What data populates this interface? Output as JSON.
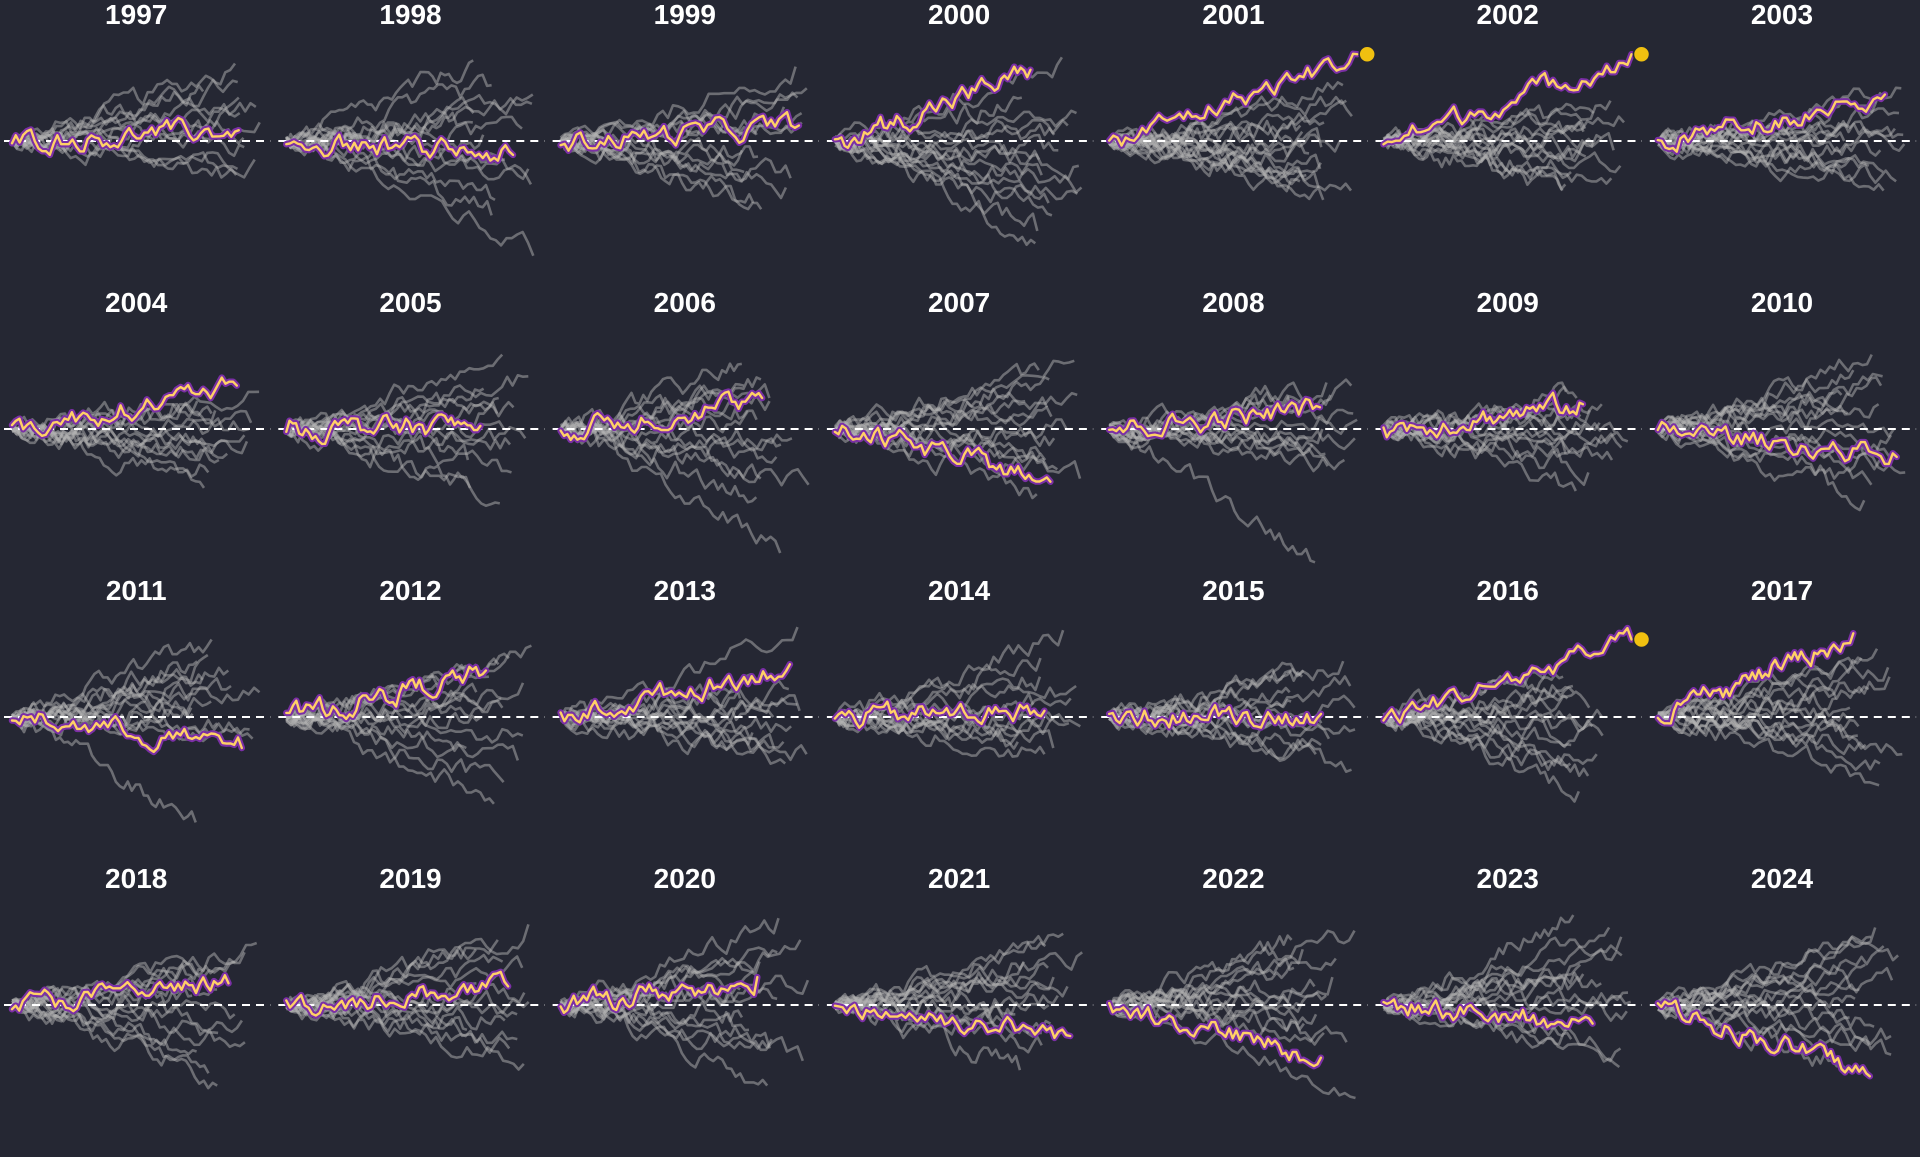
{
  "chart_data": {
    "type": "line",
    "title": "",
    "xlabel": "",
    "ylabel": "",
    "grid": false,
    "legend": "none",
    "reference_line": {
      "y": 0,
      "style": "dashed",
      "color": "#ffffff"
    },
    "colors": {
      "background": "#252733",
      "panel_title": "#ffffff",
      "other_series": "#b4b4b4",
      "highlight_series": "#ffd166",
      "highlight_outline": "#7b2fa6",
      "end_marker": "#f0c010"
    },
    "ylim": [
      -4.6,
      3.0
    ],
    "panels": [
      {
        "title": "1997",
        "highlight_end": 0.35,
        "end_marker": false,
        "others": [
          -1.1,
          0.6,
          1.4,
          2.5,
          1.9,
          0.1,
          0.9,
          -0.6,
          0.3,
          -0.2,
          1.1,
          1.6,
          -0.9
        ]
      },
      {
        "title": "1998",
        "highlight_end": -0.45,
        "end_marker": false,
        "others": [
          2.6,
          -3.7,
          -1.9,
          1.2,
          0.6,
          -0.9,
          1.5,
          0.2,
          -0.6,
          -1.4,
          0.9,
          1.8,
          -2.4,
          0.4
        ]
      },
      {
        "title": "1999",
        "highlight_end": 0.5,
        "end_marker": false,
        "others": [
          2.4,
          1.7,
          1.1,
          0.6,
          -0.5,
          -1.0,
          -1.5,
          -2.0,
          0.2,
          0.9,
          -0.3,
          -1.2,
          -2.2,
          1.4
        ]
      },
      {
        "title": "2000",
        "highlight_end": 2.3,
        "end_marker": false,
        "others": [
          2.7,
          -3.3,
          -2.4,
          -1.5,
          -0.8,
          -0.3,
          0.2,
          0.9,
          1.4,
          -1.1,
          -2.0,
          0.5,
          -2.9,
          -1.7,
          -0.6
        ]
      },
      {
        "title": "2001",
        "highlight_end": 2.8,
        "end_marker": true,
        "others": [
          0.8,
          0.3,
          -0.2,
          -0.7,
          -1.1,
          -1.6,
          -1.9,
          0.5,
          0.0,
          -0.4,
          -0.9,
          -1.3,
          1.3,
          1.8,
          -1.5,
          0.6
        ]
      },
      {
        "title": "2002",
        "highlight_end": 2.8,
        "end_marker": true,
        "others": [
          0.9,
          0.3,
          -0.3,
          -0.8,
          -1.2,
          -1.6,
          0.6,
          0.1,
          -0.5,
          -1.0,
          1.3,
          -1.4,
          -0.2,
          0.4
        ]
      },
      {
        "title": "2003",
        "highlight_end": 1.5,
        "end_marker": false,
        "others": [
          0.9,
          0.4,
          -0.1,
          -0.6,
          -1.0,
          -1.6,
          1.3,
          0.2,
          -0.3,
          -0.8,
          1.7,
          -1.3,
          0.6,
          0.0
        ]
      },
      {
        "title": "2004",
        "highlight_end": 1.4,
        "end_marker": false,
        "others": [
          0.9,
          0.5,
          0.2,
          -0.2,
          -0.5,
          -1.0,
          -1.9,
          1.2,
          0.0,
          -0.4,
          0.6,
          -0.8,
          -1.4
        ]
      },
      {
        "title": "2005",
        "highlight_end": 0.1,
        "end_marker": false,
        "others": [
          2.4,
          1.7,
          1.0,
          0.5,
          0.0,
          -0.5,
          -1.0,
          -1.9,
          -2.4,
          1.3,
          0.7,
          -0.3,
          -1.4
        ]
      },
      {
        "title": "2006",
        "highlight_end": 1.0,
        "end_marker": false,
        "others": [
          2.1,
          1.6,
          1.0,
          0.3,
          -0.3,
          -0.9,
          -1.6,
          -2.2,
          -4.0,
          1.4,
          0.6,
          -0.5,
          -1.8,
          0.9
        ]
      },
      {
        "title": "2007",
        "highlight_end": -1.7,
        "end_marker": false,
        "others": [
          2.2,
          1.6,
          0.9,
          0.4,
          -0.3,
          -0.8,
          -1.3,
          -2.1,
          1.9,
          1.1,
          0.0,
          -1.0,
          -1.6,
          0.7
        ]
      },
      {
        "title": "2008",
        "highlight_end": 0.7,
        "end_marker": false,
        "others": [
          1.5,
          0.9,
          0.3,
          -0.3,
          -0.8,
          -1.2,
          -4.3,
          1.1,
          0.5,
          -0.5,
          -1.0,
          1.4,
          0.0
        ]
      },
      {
        "title": "2009",
        "highlight_end": 0.8,
        "end_marker": false,
        "others": [
          1.2,
          0.8,
          0.4,
          -0.1,
          -0.6,
          -1.0,
          -2.0,
          1.0,
          0.2,
          -0.4,
          -0.8,
          0.6,
          -1.4
        ]
      },
      {
        "title": "2010",
        "highlight_end": -0.9,
        "end_marker": false,
        "others": [
          2.4,
          1.7,
          1.1,
          0.5,
          -0.2,
          -0.8,
          -1.4,
          -2.3,
          1.9,
          0.8,
          0.0,
          -1.1,
          -1.8,
          1.4
        ]
      },
      {
        "title": "2011",
        "highlight_end": -1.0,
        "end_marker": false,
        "others": [
          2.5,
          1.8,
          1.2,
          0.8,
          0.3,
          -0.2,
          -0.7,
          -3.4,
          1.5,
          1.0,
          0.5,
          -0.4,
          2.0,
          0.1
        ]
      },
      {
        "title": "2012",
        "highlight_end": 1.5,
        "end_marker": false,
        "others": [
          2.3,
          1.7,
          1.1,
          0.6,
          0.0,
          -0.6,
          -1.4,
          -2.8,
          1.9,
          1.3,
          0.3,
          -1.0,
          -2.1,
          0.8
        ]
      },
      {
        "title": "2013",
        "highlight_end": 1.7,
        "end_marker": false,
        "others": [
          2.9,
          1.2,
          0.6,
          0.0,
          -0.5,
          -1.0,
          -1.5,
          0.9,
          0.2,
          -0.3,
          -0.8,
          -1.2,
          0.4
        ]
      },
      {
        "title": "2014",
        "highlight_end": 0.2,
        "end_marker": false,
        "others": [
          2.8,
          1.9,
          1.0,
          0.4,
          -0.3,
          -0.8,
          -1.2,
          0.6,
          0.0,
          -0.5,
          -1.0,
          1.3,
          -0.2
        ]
      },
      {
        "title": "2015",
        "highlight_end": 0.1,
        "end_marker": false,
        "others": [
          1.8,
          1.3,
          0.8,
          0.3,
          -0.2,
          -0.7,
          -1.2,
          -1.7,
          1.0,
          0.5,
          -0.4,
          -0.9,
          1.5,
          0.0
        ]
      },
      {
        "title": "2016",
        "highlight_end": 2.5,
        "end_marker": true,
        "others": [
          1.8,
          1.3,
          0.6,
          0.0,
          -0.6,
          -1.2,
          -1.9,
          -2.4,
          1.0,
          0.3,
          -0.3,
          -0.9,
          -1.5,
          0.8
        ]
      },
      {
        "title": "2017",
        "highlight_end": 2.7,
        "end_marker": false,
        "others": [
          2.2,
          1.6,
          0.9,
          0.3,
          -0.3,
          -0.9,
          -1.5,
          -2.2,
          1.3,
          0.6,
          0.0,
          -0.6,
          -1.2,
          1.9
        ]
      },
      {
        "title": "2018",
        "highlight_end": 0.7,
        "end_marker": false,
        "others": [
          2.0,
          1.4,
          0.8,
          0.3,
          -0.3,
          -0.9,
          -1.5,
          -2.2,
          -2.6,
          1.1,
          0.5,
          -0.5,
          -1.2,
          1.7
        ]
      },
      {
        "title": "2019",
        "highlight_end": 0.6,
        "end_marker": false,
        "others": [
          2.6,
          1.8,
          1.2,
          0.7,
          0.1,
          -0.5,
          -1.1,
          -1.9,
          2.1,
          1.4,
          0.4,
          -0.3,
          -0.8,
          -1.4
        ]
      },
      {
        "title": "2020",
        "highlight_end": 0.9,
        "end_marker": false,
        "others": [
          2.8,
          2.1,
          1.4,
          0.8,
          0.2,
          -0.4,
          -1.1,
          -1.8,
          -2.6,
          1.7,
          1.1,
          0.5,
          -0.8,
          -1.4
        ]
      },
      {
        "title": "2021",
        "highlight_end": -1.0,
        "end_marker": false,
        "others": [
          2.3,
          1.7,
          1.2,
          0.6,
          0.0,
          -0.6,
          -1.3,
          -2.1,
          1.9,
          1.4,
          0.9,
          0.3,
          -0.3,
          -0.9
        ]
      },
      {
        "title": "2022",
        "highlight_end": -1.7,
        "end_marker": false,
        "others": [
          2.4,
          1.8,
          1.2,
          0.6,
          0.0,
          -0.6,
          -1.2,
          -3.0,
          2.1,
          1.5,
          0.9,
          0.3,
          -0.3,
          -0.9
        ]
      },
      {
        "title": "2023",
        "highlight_end": -0.6,
        "end_marker": false,
        "others": [
          2.9,
          2.2,
          1.6,
          1.0,
          0.4,
          -0.2,
          -0.8,
          -1.4,
          -2.0,
          2.5,
          1.3,
          0.7,
          0.1,
          -1.1
        ]
      },
      {
        "title": "2024",
        "highlight_end": -2.3,
        "end_marker": false,
        "others": [
          2.5,
          1.9,
          1.3,
          0.8,
          0.2,
          -0.4,
          -1.0,
          -1.6,
          -2.0,
          2.2,
          1.6,
          0.5,
          -0.7,
          -1.3
        ]
      }
    ]
  }
}
